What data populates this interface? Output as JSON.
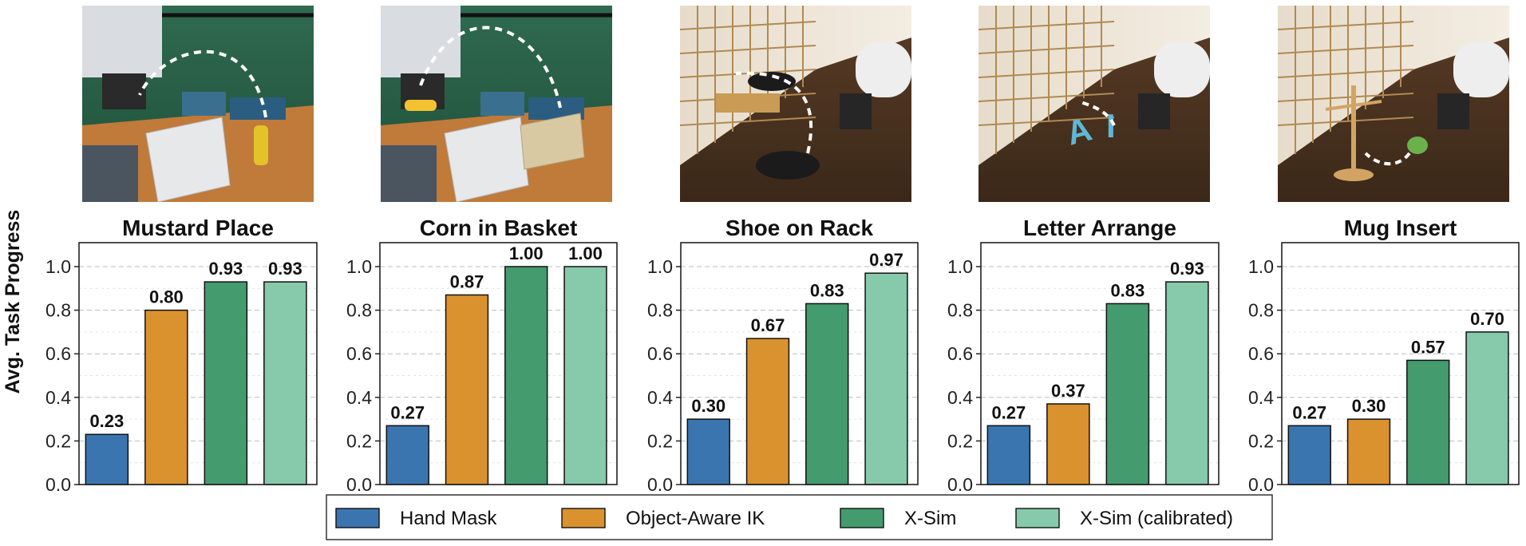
{
  "ylabel": "Avg. Task Progress",
  "yticks": [
    "0.0",
    "0.2",
    "0.4",
    "0.6",
    "0.8",
    "1.0"
  ],
  "legend": {
    "placement": "bottom-center",
    "entries": [
      {
        "label": "Hand Mask",
        "color": "#3a75b0"
      },
      {
        "label": "Object-Aware IK",
        "color": "#d9922e"
      },
      {
        "label": "X-Sim",
        "color": "#449b6e"
      },
      {
        "label": "X-Sim (calibrated)",
        "color": "#86c9ab"
      }
    ]
  },
  "photos": [
    {
      "scene": "kitchen-sink",
      "object": "mustard-bottle"
    },
    {
      "scene": "kitchen-sink",
      "object": "corn-and-basket"
    },
    {
      "scene": "shoji-room",
      "object": "shoe-and-rack"
    },
    {
      "scene": "shoji-room",
      "object": "letters-A-I"
    },
    {
      "scene": "shoji-room",
      "object": "mug-and-tree"
    }
  ],
  "chart_data": [
    {
      "type": "bar",
      "title": "Mustard Place",
      "categories": [
        "Hand Mask",
        "Object-Aware IK",
        "X-Sim",
        "X-Sim (calibrated)"
      ],
      "values": [
        0.23,
        0.8,
        0.93,
        0.93
      ],
      "labels": [
        "0.23",
        "0.80",
        "0.93",
        "0.93"
      ],
      "ylim": [
        0,
        1.1
      ],
      "grid": true
    },
    {
      "type": "bar",
      "title": "Corn in Basket",
      "categories": [
        "Hand Mask",
        "Object-Aware IK",
        "X-Sim",
        "X-Sim (calibrated)"
      ],
      "values": [
        0.27,
        0.87,
        1.0,
        1.0
      ],
      "labels": [
        "0.27",
        "0.87",
        "1.00",
        "1.00"
      ],
      "ylim": [
        0,
        1.1
      ],
      "grid": true
    },
    {
      "type": "bar",
      "title": "Shoe on Rack",
      "categories": [
        "Hand Mask",
        "Object-Aware IK",
        "X-Sim",
        "X-Sim (calibrated)"
      ],
      "values": [
        0.3,
        0.67,
        0.83,
        0.97
      ],
      "labels": [
        "0.30",
        "0.67",
        "0.83",
        "0.97"
      ],
      "ylim": [
        0,
        1.1
      ],
      "grid": true
    },
    {
      "type": "bar",
      "title": "Letter Arrange",
      "categories": [
        "Hand Mask",
        "Object-Aware IK",
        "X-Sim",
        "X-Sim (calibrated)"
      ],
      "values": [
        0.27,
        0.37,
        0.83,
        0.93
      ],
      "labels": [
        "0.27",
        "0.37",
        "0.83",
        "0.93"
      ],
      "ylim": [
        0,
        1.1
      ],
      "grid": true
    },
    {
      "type": "bar",
      "title": "Mug Insert",
      "categories": [
        "Hand Mask",
        "Object-Aware IK",
        "X-Sim",
        "X-Sim (calibrated)"
      ],
      "values": [
        0.27,
        0.3,
        0.57,
        0.7
      ],
      "labels": [
        "0.27",
        "0.30",
        "0.57",
        "0.70"
      ],
      "ylim": [
        0,
        1.1
      ],
      "grid": true
    }
  ]
}
